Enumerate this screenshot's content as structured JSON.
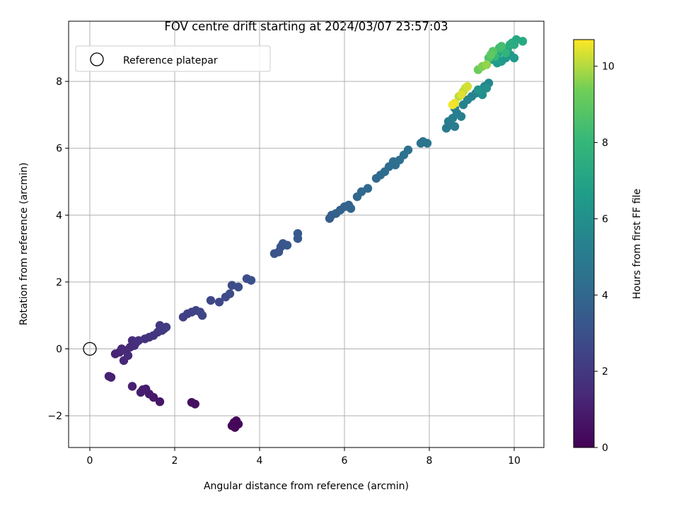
{
  "chart_data": {
    "type": "scatter",
    "title": "FOV centre drift starting at 2024/03/07 23:57:03",
    "xlabel": "Angular distance from reference (arcmin)",
    "ylabel": "Rotation from reference (arcmin)",
    "xlim": [
      -0.5,
      10.7
    ],
    "ylim": [
      -2.95,
      9.8
    ],
    "xticks": [
      "0",
      "2",
      "4",
      "6",
      "8",
      "10"
    ],
    "xtick_values": [
      0,
      2,
      4,
      6,
      8,
      10
    ],
    "yticks": [
      "−2",
      "0",
      "2",
      "4",
      "6",
      "8"
    ],
    "ytick_values": [
      -2,
      0,
      2,
      4,
      6,
      8
    ],
    "grid": true,
    "legend": {
      "placement": "top-left",
      "entries": [
        "Reference platepar"
      ]
    },
    "reference_point": {
      "x": 0,
      "y": 0
    },
    "colorbar": {
      "label": "Hours from first FF file",
      "range": [
        0,
        10.7
      ],
      "ticks": [
        "0",
        "2",
        "4",
        "6",
        "8",
        "10"
      ],
      "tick_values": [
        0,
        2,
        4,
        6,
        8,
        10
      ],
      "colormap": "viridis"
    },
    "series": [
      {
        "values": [
          {
            "x": 3.35,
            "y": -2.3,
            "c": 0.1
          },
          {
            "x": 3.4,
            "y": -2.2,
            "c": 0.12
          },
          {
            "x": 3.45,
            "y": -2.15,
            "c": 0.15
          },
          {
            "x": 3.5,
            "y": -2.25,
            "c": 0.18
          },
          {
            "x": 3.38,
            "y": -2.25,
            "c": 0.2
          },
          {
            "x": 3.42,
            "y": -2.35,
            "c": 0.22
          },
          {
            "x": 2.4,
            "y": -1.6,
            "c": 0.45
          },
          {
            "x": 2.48,
            "y": -1.65,
            "c": 0.5
          },
          {
            "x": 1.65,
            "y": -1.58,
            "c": 0.75
          },
          {
            "x": 1.5,
            "y": -1.45,
            "c": 0.8
          },
          {
            "x": 1.4,
            "y": -1.35,
            "c": 0.85
          },
          {
            "x": 1.32,
            "y": -1.2,
            "c": 0.9
          },
          {
            "x": 1.2,
            "y": -1.3,
            "c": 0.95
          },
          {
            "x": 1.25,
            "y": -1.22,
            "c": 1.0
          },
          {
            "x": 1.0,
            "y": -1.12,
            "c": 1.05
          },
          {
            "x": 0.45,
            "y": -0.82,
            "c": 1.05
          },
          {
            "x": 0.5,
            "y": -0.85,
            "c": 1.1
          },
          {
            "x": 0.6,
            "y": -0.15,
            "c": 1.2
          },
          {
            "x": 0.7,
            "y": -0.1,
            "c": 1.25
          },
          {
            "x": 0.8,
            "y": -0.35,
            "c": 1.3
          },
          {
            "x": 0.75,
            "y": 0.0,
            "c": 1.35
          },
          {
            "x": 0.85,
            "y": -0.05,
            "c": 1.4
          },
          {
            "x": 0.9,
            "y": -0.2,
            "c": 1.45
          },
          {
            "x": 0.95,
            "y": 0.05,
            "c": 1.5
          },
          {
            "x": 1.0,
            "y": 0.25,
            "c": 1.55
          },
          {
            "x": 1.05,
            "y": 0.1,
            "c": 1.6
          },
          {
            "x": 1.1,
            "y": 0.2,
            "c": 1.65
          },
          {
            "x": 1.15,
            "y": 0.25,
            "c": 1.7
          },
          {
            "x": 1.3,
            "y": 0.3,
            "c": 1.75
          },
          {
            "x": 1.4,
            "y": 0.35,
            "c": 1.8
          },
          {
            "x": 1.5,
            "y": 0.4,
            "c": 1.9
          },
          {
            "x": 1.6,
            "y": 0.5,
            "c": 1.95
          },
          {
            "x": 1.65,
            "y": 0.7,
            "c": 2.0
          },
          {
            "x": 1.7,
            "y": 0.55,
            "c": 2.05
          },
          {
            "x": 1.75,
            "y": 0.6,
            "c": 2.1
          },
          {
            "x": 1.8,
            "y": 0.65,
            "c": 2.15
          },
          {
            "x": 2.2,
            "y": 0.95,
            "c": 2.3
          },
          {
            "x": 2.3,
            "y": 1.05,
            "c": 2.35
          },
          {
            "x": 2.4,
            "y": 1.1,
            "c": 2.4
          },
          {
            "x": 2.5,
            "y": 1.15,
            "c": 2.45
          },
          {
            "x": 2.6,
            "y": 1.1,
            "c": 2.5
          },
          {
            "x": 2.65,
            "y": 1.0,
            "c": 2.55
          },
          {
            "x": 2.85,
            "y": 1.45,
            "c": 2.6
          },
          {
            "x": 3.05,
            "y": 1.4,
            "c": 2.65
          },
          {
            "x": 3.2,
            "y": 1.55,
            "c": 2.7
          },
          {
            "x": 3.3,
            "y": 1.65,
            "c": 2.75
          },
          {
            "x": 3.35,
            "y": 1.9,
            "c": 2.8
          },
          {
            "x": 3.5,
            "y": 1.85,
            "c": 2.85
          },
          {
            "x": 3.7,
            "y": 2.1,
            "c": 2.9
          },
          {
            "x": 3.8,
            "y": 2.05,
            "c": 2.95
          },
          {
            "x": 4.35,
            "y": 2.85,
            "c": 3.1
          },
          {
            "x": 4.45,
            "y": 2.9,
            "c": 3.15
          },
          {
            "x": 4.5,
            "y": 3.05,
            "c": 3.2
          },
          {
            "x": 4.55,
            "y": 3.15,
            "c": 3.25
          },
          {
            "x": 4.65,
            "y": 3.1,
            "c": 3.3
          },
          {
            "x": 4.9,
            "y": 3.3,
            "c": 3.35
          },
          {
            "x": 4.9,
            "y": 3.45,
            "c": 3.4
          },
          {
            "x": 5.65,
            "y": 3.9,
            "c": 3.6
          },
          {
            "x": 5.7,
            "y": 4.0,
            "c": 3.65
          },
          {
            "x": 5.8,
            "y": 4.05,
            "c": 3.7
          },
          {
            "x": 5.9,
            "y": 4.15,
            "c": 3.75
          },
          {
            "x": 6.0,
            "y": 4.25,
            "c": 3.8
          },
          {
            "x": 6.1,
            "y": 4.3,
            "c": 3.85
          },
          {
            "x": 6.15,
            "y": 4.2,
            "c": 3.9
          },
          {
            "x": 6.3,
            "y": 4.55,
            "c": 3.95
          },
          {
            "x": 6.4,
            "y": 4.7,
            "c": 4.0
          },
          {
            "x": 6.55,
            "y": 4.8,
            "c": 4.05
          },
          {
            "x": 6.75,
            "y": 5.1,
            "c": 4.1
          },
          {
            "x": 6.85,
            "y": 5.2,
            "c": 4.15
          },
          {
            "x": 6.95,
            "y": 5.3,
            "c": 4.2
          },
          {
            "x": 7.05,
            "y": 5.45,
            "c": 4.25
          },
          {
            "x": 7.15,
            "y": 5.6,
            "c": 4.3
          },
          {
            "x": 7.2,
            "y": 5.5,
            "c": 4.35
          },
          {
            "x": 7.3,
            "y": 5.65,
            "c": 4.4
          },
          {
            "x": 7.4,
            "y": 5.8,
            "c": 4.45
          },
          {
            "x": 7.5,
            "y": 5.95,
            "c": 4.5
          },
          {
            "x": 7.8,
            "y": 6.15,
            "c": 4.6
          },
          {
            "x": 7.85,
            "y": 6.2,
            "c": 4.65
          },
          {
            "x": 7.95,
            "y": 6.15,
            "c": 4.7
          },
          {
            "x": 8.4,
            "y": 6.6,
            "c": 4.9
          },
          {
            "x": 8.5,
            "y": 6.7,
            "c": 4.95
          },
          {
            "x": 8.6,
            "y": 6.65,
            "c": 5.0
          },
          {
            "x": 8.45,
            "y": 6.8,
            "c": 5.05
          },
          {
            "x": 8.55,
            "y": 6.9,
            "c": 5.1
          },
          {
            "x": 8.65,
            "y": 7.05,
            "c": 5.15
          },
          {
            "x": 8.75,
            "y": 6.95,
            "c": 5.2
          },
          {
            "x": 8.6,
            "y": 7.2,
            "c": 5.25
          },
          {
            "x": 8.8,
            "y": 7.3,
            "c": 5.3
          },
          {
            "x": 8.9,
            "y": 7.45,
            "c": 5.35
          },
          {
            "x": 9.0,
            "y": 7.55,
            "c": 5.4
          },
          {
            "x": 9.1,
            "y": 7.65,
            "c": 5.45
          },
          {
            "x": 9.2,
            "y": 7.7,
            "c": 5.5
          },
          {
            "x": 9.3,
            "y": 7.85,
            "c": 5.55
          },
          {
            "x": 9.4,
            "y": 7.95,
            "c": 5.6
          },
          {
            "x": 9.25,
            "y": 7.6,
            "c": 5.9
          },
          {
            "x": 9.35,
            "y": 7.8,
            "c": 6.0
          },
          {
            "x": 9.15,
            "y": 7.75,
            "c": 6.2
          },
          {
            "x": 9.8,
            "y": 8.7,
            "c": 6.4
          },
          {
            "x": 9.9,
            "y": 8.8,
            "c": 6.45
          },
          {
            "x": 10.0,
            "y": 8.7,
            "c": 6.5
          },
          {
            "x": 9.7,
            "y": 8.6,
            "c": 6.55
          },
          {
            "x": 9.6,
            "y": 8.55,
            "c": 6.6
          },
          {
            "x": 9.5,
            "y": 8.65,
            "c": 6.7
          },
          {
            "x": 9.6,
            "y": 8.8,
            "c": 6.8
          },
          {
            "x": 9.75,
            "y": 8.9,
            "c": 6.9
          },
          {
            "x": 9.85,
            "y": 9.0,
            "c": 7.0
          },
          {
            "x": 9.95,
            "y": 9.15,
            "c": 7.1
          },
          {
            "x": 10.05,
            "y": 9.25,
            "c": 7.2
          },
          {
            "x": 10.2,
            "y": 9.2,
            "c": 7.3
          },
          {
            "x": 10.0,
            "y": 9.1,
            "c": 7.4
          },
          {
            "x": 9.9,
            "y": 9.1,
            "c": 7.5
          },
          {
            "x": 9.7,
            "y": 8.95,
            "c": 7.6
          },
          {
            "x": 9.8,
            "y": 8.85,
            "c": 7.8
          },
          {
            "x": 9.55,
            "y": 8.75,
            "c": 8.0
          },
          {
            "x": 9.65,
            "y": 9.0,
            "c": 8.2
          },
          {
            "x": 9.7,
            "y": 9.05,
            "c": 8.4
          },
          {
            "x": 9.4,
            "y": 8.7,
            "c": 8.6
          },
          {
            "x": 9.5,
            "y": 8.9,
            "c": 8.8
          },
          {
            "x": 9.45,
            "y": 8.8,
            "c": 9.0
          },
          {
            "x": 9.15,
            "y": 8.35,
            "c": 9.3
          },
          {
            "x": 9.25,
            "y": 8.45,
            "c": 9.5
          },
          {
            "x": 9.35,
            "y": 8.5,
            "c": 9.7
          },
          {
            "x": 8.7,
            "y": 7.55,
            "c": 10.0
          },
          {
            "x": 8.8,
            "y": 7.7,
            "c": 10.1
          },
          {
            "x": 8.85,
            "y": 7.8,
            "c": 10.2
          },
          {
            "x": 8.9,
            "y": 7.85,
            "c": 10.3
          },
          {
            "x": 8.75,
            "y": 7.6,
            "c": 10.4
          },
          {
            "x": 8.6,
            "y": 7.35,
            "c": 10.5
          },
          {
            "x": 8.55,
            "y": 7.3,
            "c": 10.6
          }
        ]
      }
    ]
  }
}
